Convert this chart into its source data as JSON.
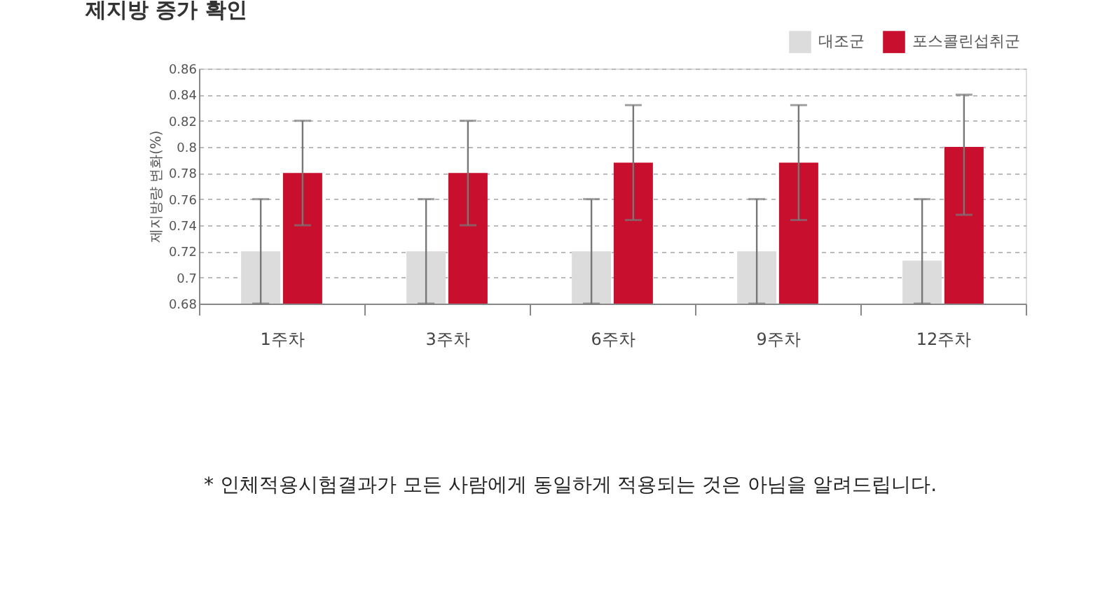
{
  "chart_data": {
    "type": "bar",
    "title": "제지방 증가 확인",
    "ylabel": "제지방량 변화(%)",
    "categories": [
      "1주차",
      "3주차",
      "6주차",
      "9주차",
      "12주차"
    ],
    "series": [
      {
        "name": "대조군",
        "color": "#dcdcdc",
        "values": [
          0.72,
          0.72,
          0.72,
          0.72,
          0.713
        ],
        "errors": [
          [
            0.68,
            0.76
          ],
          [
            0.68,
            0.76
          ],
          [
            0.68,
            0.76
          ],
          [
            0.68,
            0.76
          ],
          [
            0.68,
            0.76
          ]
        ]
      },
      {
        "name": "포스콜린섭취군",
        "color": "#c8102e",
        "values": [
          0.78,
          0.78,
          0.788,
          0.788,
          0.8
        ],
        "errors": [
          0.04,
          0.04,
          0.044,
          0.044,
          [
            0.748,
            0.84
          ]
        ]
      }
    ],
    "ylim": [
      0.68,
      0.86
    ],
    "yticks": [
      0.68,
      0.7,
      0.72,
      0.74,
      0.76,
      0.78,
      0.8,
      0.82,
      0.84,
      0.86
    ],
    "grid": "y",
    "legend": "top right",
    "annotations": [
      "* 인체적용시험결과가 모든 사람에게 동일하게 적용되는 것은 아님을 알려드립니다."
    ]
  }
}
